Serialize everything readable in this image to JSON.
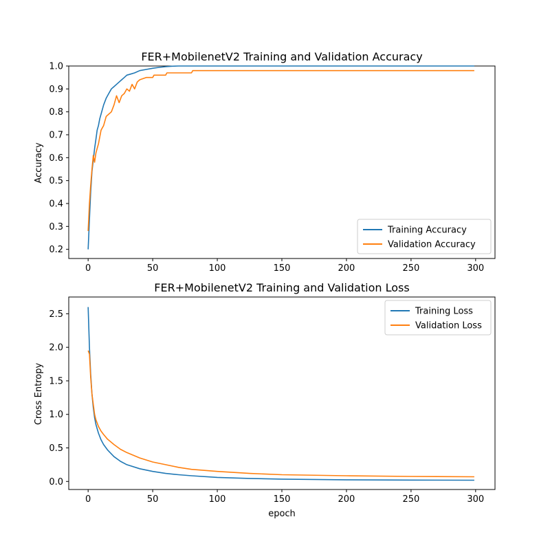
{
  "chart_data": [
    {
      "type": "line",
      "title": "FER+MobilenetV2 Training and Validation Accuracy",
      "xlabel": "",
      "ylabel": "Accuracy",
      "xlim": [
        -15,
        315
      ],
      "ylim": [
        0.16,
        1.0
      ],
      "xticks": [
        0,
        50,
        100,
        150,
        200,
        250,
        300
      ],
      "yticks": [
        0.2,
        0.3,
        0.4,
        0.5,
        0.6,
        0.7,
        0.8,
        0.9,
        1.0
      ],
      "ytick_labels": [
        "0.2",
        "0.3",
        "0.4",
        "0.5",
        "0.6",
        "0.7",
        "0.8",
        "0.9",
        "1.0"
      ],
      "legend": "lower right",
      "series": [
        {
          "name": "Training Accuracy",
          "color": "#1f77b4",
          "x": [
            0,
            1,
            2,
            3,
            4,
            5,
            6,
            7,
            8,
            9,
            10,
            12,
            14,
            16,
            18,
            20,
            22,
            24,
            26,
            28,
            30,
            33,
            36,
            40,
            45,
            50,
            55,
            60,
            65,
            70,
            80,
            100,
            150,
            200,
            250,
            299
          ],
          "y": [
            0.2,
            0.33,
            0.45,
            0.54,
            0.59,
            0.64,
            0.68,
            0.72,
            0.74,
            0.77,
            0.79,
            0.83,
            0.86,
            0.88,
            0.9,
            0.91,
            0.92,
            0.93,
            0.94,
            0.95,
            0.96,
            0.965,
            0.97,
            0.98,
            0.985,
            0.99,
            0.994,
            0.997,
            0.999,
            1.0,
            1.0,
            1.0,
            1.0,
            1.0,
            1.0,
            1.0
          ]
        },
        {
          "name": "Validation Accuracy",
          "color": "#ff7f0e",
          "x": [
            0,
            1,
            2,
            3,
            4,
            5,
            6,
            7,
            8,
            10,
            12,
            14,
            16,
            18,
            20,
            22,
            24,
            26,
            28,
            30,
            32,
            34,
            36,
            38,
            40,
            45,
            50,
            51,
            60,
            61,
            80,
            81,
            100,
            150,
            200,
            250,
            299
          ],
          "y": [
            0.28,
            0.4,
            0.48,
            0.55,
            0.61,
            0.58,
            0.62,
            0.64,
            0.66,
            0.72,
            0.74,
            0.78,
            0.79,
            0.8,
            0.83,
            0.87,
            0.84,
            0.87,
            0.88,
            0.9,
            0.89,
            0.92,
            0.9,
            0.93,
            0.94,
            0.95,
            0.95,
            0.96,
            0.96,
            0.97,
            0.97,
            0.98,
            0.98,
            0.98,
            0.98,
            0.98,
            0.98
          ]
        }
      ]
    },
    {
      "type": "line",
      "title": "FER+MobilenetV2 Training and Validation Loss",
      "xlabel": "epoch",
      "ylabel": "Cross Entropy",
      "xlim": [
        -15,
        315
      ],
      "ylim": [
        -0.12,
        2.75
      ],
      "xticks": [
        0,
        50,
        100,
        150,
        200,
        250,
        300
      ],
      "yticks": [
        0.0,
        0.5,
        1.0,
        1.5,
        2.0,
        2.5
      ],
      "ytick_labels": [
        "0.0",
        "0.5",
        "1.0",
        "1.5",
        "2.0",
        "2.5"
      ],
      "legend": "upper right",
      "series": [
        {
          "name": "Training Loss",
          "color": "#1f77b4",
          "x": [
            0,
            1,
            2,
            3,
            4,
            5,
            6,
            8,
            10,
            12,
            15,
            20,
            25,
            30,
            40,
            50,
            60,
            70,
            80,
            100,
            125,
            150,
            200,
            250,
            299
          ],
          "y": [
            2.6,
            2.0,
            1.6,
            1.3,
            1.1,
            0.95,
            0.85,
            0.72,
            0.62,
            0.55,
            0.47,
            0.37,
            0.3,
            0.25,
            0.19,
            0.15,
            0.12,
            0.1,
            0.085,
            0.06,
            0.045,
            0.035,
            0.025,
            0.02,
            0.018
          ]
        },
        {
          "name": "Validation Loss",
          "color": "#ff7f0e",
          "x": [
            0,
            1,
            2,
            3,
            4,
            5,
            6,
            8,
            10,
            12,
            15,
            20,
            25,
            30,
            40,
            50,
            60,
            70,
            80,
            100,
            125,
            150,
            200,
            250,
            299
          ],
          "y": [
            1.95,
            1.9,
            1.55,
            1.3,
            1.15,
            1.0,
            0.92,
            0.82,
            0.75,
            0.7,
            0.63,
            0.55,
            0.48,
            0.43,
            0.35,
            0.29,
            0.25,
            0.21,
            0.18,
            0.15,
            0.12,
            0.1,
            0.085,
            0.075,
            0.07
          ]
        }
      ]
    }
  ]
}
